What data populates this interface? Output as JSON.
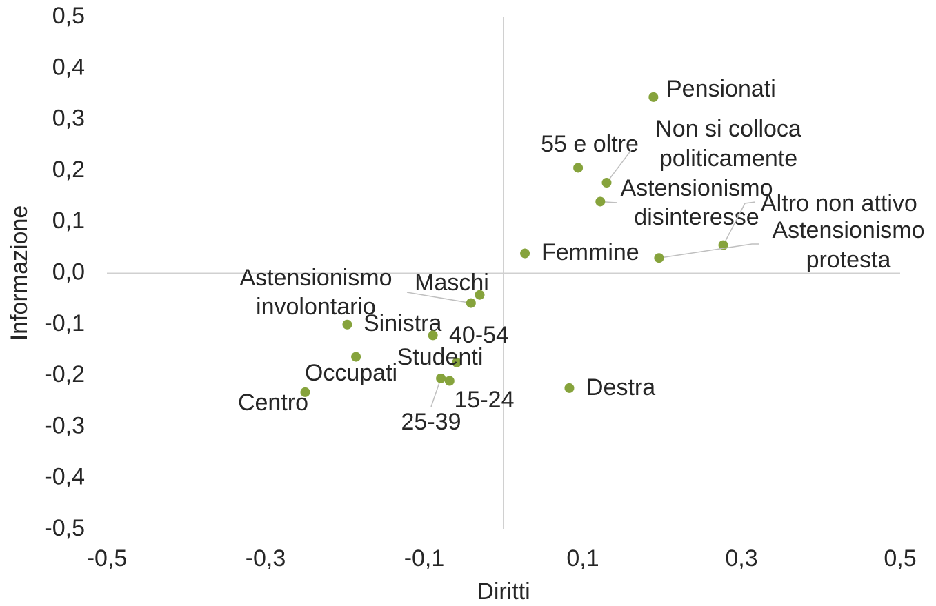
{
  "chart_data": {
    "type": "scatter",
    "x_label": "Diritti",
    "y_label": "Informazione",
    "color": "#86a33c",
    "labels": [
      [
        "Pensionati"
      ],
      [
        "55 e oltre"
      ],
      [
        "Non si colloca",
        "politicamente"
      ],
      [
        "Astensionismo",
        "disinteresse"
      ],
      [
        "Altro non attivo"
      ],
      [
        "Astensionismo",
        "protesta"
      ],
      [
        "Femmine"
      ],
      [
        "Maschi"
      ],
      [
        "Astensionismo",
        "involontario"
      ],
      [
        "Sinistra"
      ],
      [
        "40-54"
      ],
      [
        "Occupati"
      ],
      [
        "Studenti"
      ],
      [
        "25-39"
      ],
      [
        "15-24"
      ],
      [
        "Destra"
      ],
      [
        "Centro"
      ]
    ],
    "x": [
      0.189,
      0.094,
      0.13,
      0.122,
      0.277,
      0.196,
      0.027,
      -0.03,
      -0.041,
      -0.197,
      -0.089,
      -0.186,
      -0.059,
      -0.079,
      -0.068,
      0.083,
      -0.25
    ],
    "values": [
      0.344,
      0.206,
      0.177,
      0.14,
      0.055,
      0.03,
      0.039,
      -0.042,
      -0.058,
      -0.1,
      -0.121,
      -0.163,
      -0.174,
      -0.205,
      -0.21,
      -0.224,
      -0.232
    ],
    "xlim": [
      -0.5,
      0.5
    ],
    "xticks": [
      {
        "value": -0.5,
        "label": "-0,5"
      },
      {
        "value": -0.3,
        "label": "-0,3"
      },
      {
        "value": -0.1,
        "label": "-0,1"
      },
      {
        "value": 0.1,
        "label": "0,1"
      },
      {
        "value": 0.3,
        "label": "0,3"
      },
      {
        "value": 0.5,
        "label": "0,5"
      }
    ],
    "ylim": [
      -0.5,
      0.5
    ],
    "yticks": [
      {
        "value": -0.5,
        "label": "-0,5"
      },
      {
        "value": -0.4,
        "label": "-0,4"
      },
      {
        "value": -0.3,
        "label": "-0,3"
      },
      {
        "value": -0.2,
        "label": "-0,2"
      },
      {
        "value": -0.1,
        "label": "-0,1"
      },
      {
        "value": 0,
        "label": "0,0"
      },
      {
        "value": 0.1,
        "label": "0,1"
      },
      {
        "value": 0.2,
        "label": "0,2"
      },
      {
        "value": 0.3,
        "label": "0,3"
      },
      {
        "value": 0.4,
        "label": "0,4"
      },
      {
        "value": 0.5,
        "label": "0,5"
      }
    ]
  }
}
